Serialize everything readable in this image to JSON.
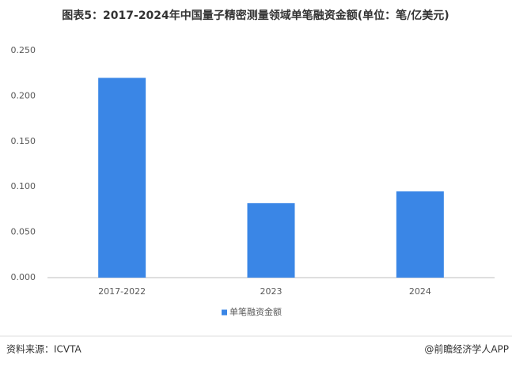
{
  "chart_data": {
    "type": "bar",
    "title": "图表5：2017-2024年中国量子精密测量领域单笔融资金额(单位：笔/亿美元)",
    "categories": [
      "2017-2022",
      "2023",
      "2024"
    ],
    "series": [
      {
        "name": "单笔融资金额",
        "color": "#3a86e6",
        "values": [
          0.22,
          0.082,
          0.095
        ]
      }
    ],
    "ylim": [
      0,
      0.25
    ],
    "yticks": [
      {
        "value": 0,
        "label": "0.000"
      },
      {
        "value": 0.05,
        "label": "0.050"
      },
      {
        "value": 0.1,
        "label": "0.100"
      },
      {
        "value": 0.15,
        "label": "0.150"
      },
      {
        "value": 0.2,
        "label": "0.200"
      },
      {
        "value": 0.25,
        "label": "0.250"
      }
    ],
    "grid": false,
    "legend": "bottom",
    "source": "资料来源：ICVTA",
    "credit": "@前瞻经济学人APP"
  }
}
